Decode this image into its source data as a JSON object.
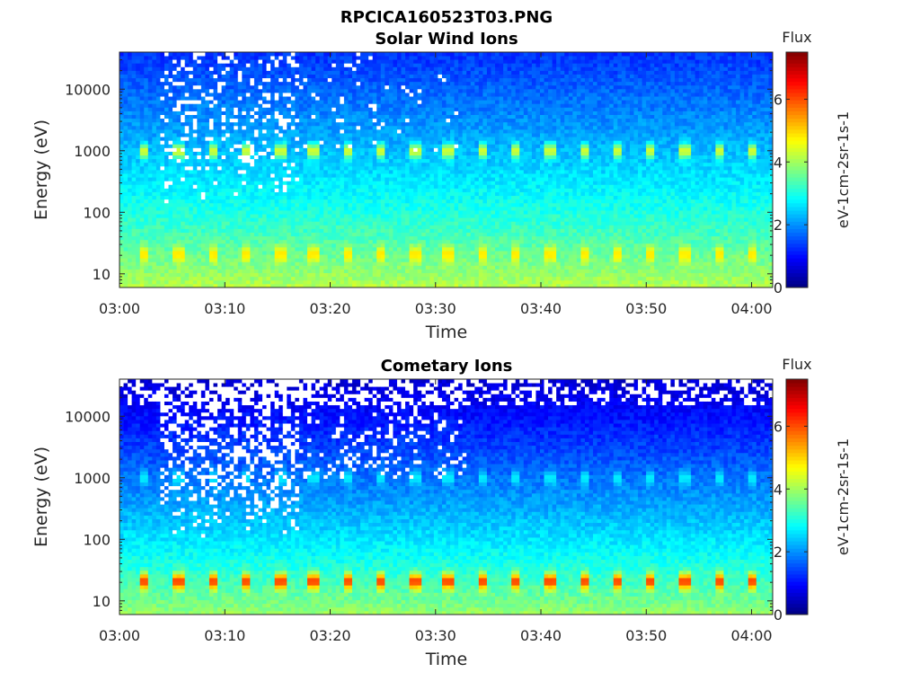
{
  "figure_title": "RPCICA160523T03.PNG",
  "chart_data": [
    {
      "type": "heatmap",
      "title": "Solar Wind Ions",
      "xlabel": "Time",
      "ylabel": "Energy (eV)",
      "x_ticks": [
        "03:00",
        "03:10",
        "03:20",
        "03:30",
        "03:40",
        "03:50",
        "04:00"
      ],
      "x_range_minutes": [
        0,
        62
      ],
      "y_scale": "log",
      "y_range_eV": [
        6,
        40000
      ],
      "y_ticks": [
        "10",
        "100",
        "1000",
        "10000"
      ],
      "colorbar": {
        "title": "Flux",
        "label": "eV-1cm-2sr-1s-1",
        "ticks": [
          "0",
          "2",
          "4",
          "6"
        ],
        "range": [
          0,
          7.5
        ],
        "colormap": "jet"
      },
      "features": {
        "background_low_energy_level": 4.2,
        "background_high_energy_level": 1.3,
        "pulse_peak_1000eV": 4.6,
        "pulse_peak_20eV": 5.0,
        "noisy_interval_minutes": [
          4,
          17
        ],
        "pulse_period_minutes": 3.2
      }
    },
    {
      "type": "heatmap",
      "title": "Cometary Ions",
      "xlabel": "Time",
      "ylabel": "Energy (eV)",
      "x_ticks": [
        "03:00",
        "03:10",
        "03:20",
        "03:30",
        "03:40",
        "03:50",
        "04:00"
      ],
      "x_range_minutes": [
        0,
        62
      ],
      "y_scale": "log",
      "y_range_eV": [
        6,
        40000
      ],
      "y_ticks": [
        "10",
        "100",
        "1000",
        "10000"
      ],
      "colorbar": {
        "title": "Flux",
        "label": "eV-1cm-2sr-1s-1",
        "ticks": [
          "0",
          "2",
          "4",
          "6"
        ],
        "range": [
          0,
          7.5
        ],
        "colormap": "jet"
      },
      "features": {
        "background_low_energy_level": 4.0,
        "background_high_energy_level": 0.6,
        "pulse_peak_1000eV": 2.8,
        "pulse_peak_20eV": 6.4,
        "noisy_interval_minutes": [
          4,
          17
        ],
        "pulse_period_minutes": 3.2
      }
    }
  ]
}
